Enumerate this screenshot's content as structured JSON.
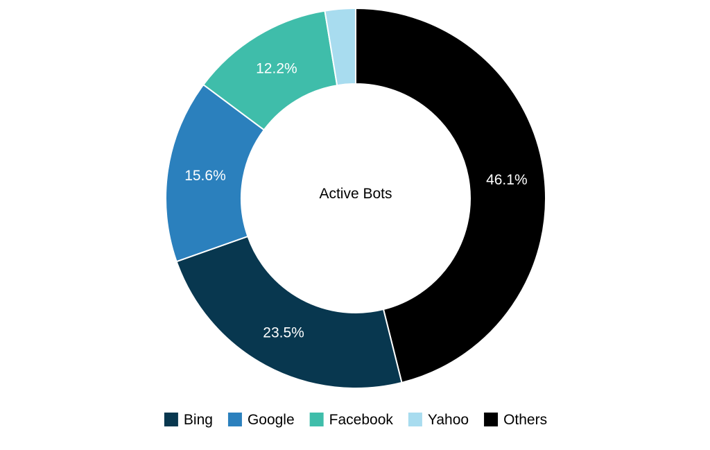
{
  "chart_data": {
    "type": "pie",
    "style": "donut",
    "center_label": "Active Bots",
    "categories": [
      "Bing",
      "Google",
      "Facebook",
      "Yahoo",
      "Others"
    ],
    "values": [
      23.5,
      15.6,
      12.2,
      2.6,
      46.1
    ],
    "value_labels": [
      "23.5%",
      "15.6%",
      "12.2%",
      "",
      "46.1%"
    ],
    "colors": [
      "#08374f",
      "#2b80bd",
      "#3fbdaa",
      "#a8dcef",
      "#000000"
    ],
    "legend_position": "bottom",
    "start": "top, clockwise"
  }
}
